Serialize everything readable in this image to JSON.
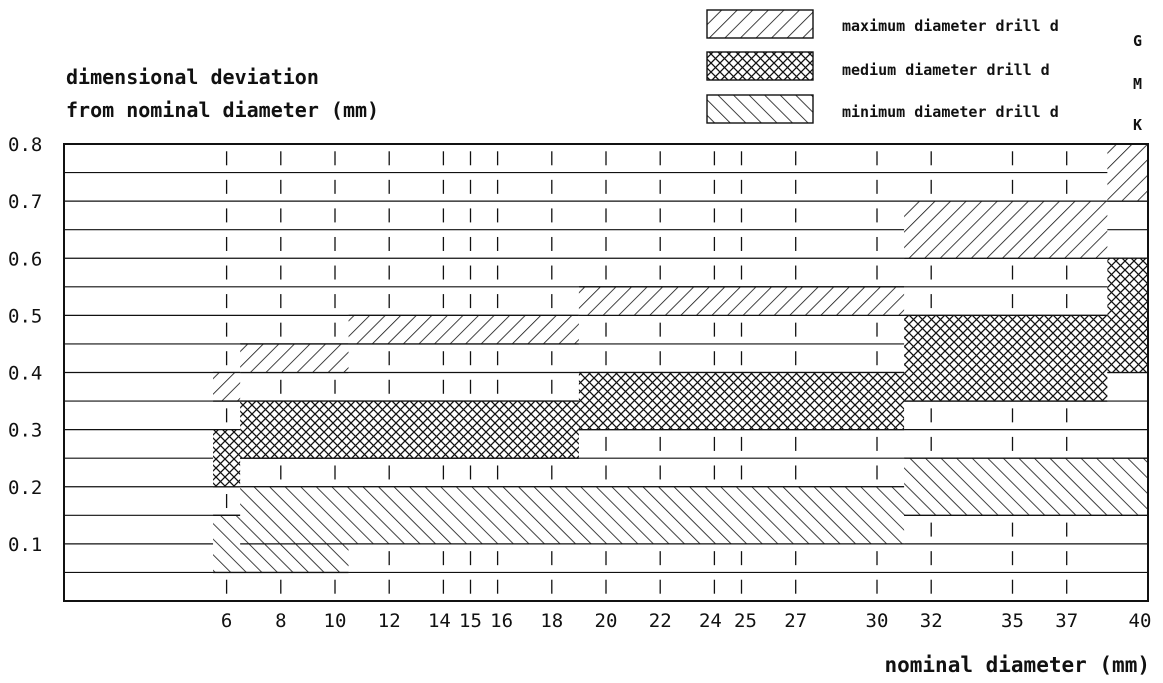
{
  "chart_data": {
    "type": "range-bar",
    "ylabel_lines": [
      "dimensional deviation",
      "from nominal diameter (mm)"
    ],
    "xlabel": "nominal diameter (mm)",
    "ylim": [
      0,
      0.8
    ],
    "xlim": [
      0,
      40
    ],
    "y_ticks": [
      "0.1",
      "0.2",
      "0.3",
      "0.4",
      "0.5",
      "0.6",
      "0.7",
      "0.8"
    ],
    "x_ticks": [
      "6",
      "8",
      "10",
      "12",
      "14",
      "15",
      "16",
      "18",
      "20",
      "22",
      "24",
      "25",
      "27",
      "30",
      "32",
      "35",
      "37",
      "40"
    ],
    "x_tick_values": [
      6,
      8,
      10,
      12,
      14,
      15,
      16,
      18,
      20,
      22,
      24,
      25,
      27,
      30,
      32,
      35,
      37,
      40
    ],
    "grid": true,
    "legend_position": "top-right",
    "series": [
      {
        "name": "maximum diameter drill d",
        "subscript": "G",
        "pattern": "diagonal-forward",
        "ranges": [
          {
            "x_from": 5.5,
            "x_to": 6.5,
            "y_from": 0.35,
            "y_to": 0.4
          },
          {
            "x_from": 6.5,
            "x_to": 10.5,
            "y_from": 0.4,
            "y_to": 0.45
          },
          {
            "x_from": 10.5,
            "x_to": 19,
            "y_from": 0.45,
            "y_to": 0.5
          },
          {
            "x_from": 19,
            "x_to": 31,
            "y_from": 0.5,
            "y_to": 0.55
          },
          {
            "x_from": 31,
            "x_to": 38.5,
            "y_from": 0.6,
            "y_to": 0.7
          },
          {
            "x_from": 38.5,
            "x_to": 40,
            "y_from": 0.7,
            "y_to": 0.8
          }
        ]
      },
      {
        "name": "medium diameter drill d",
        "subscript": "M",
        "pattern": "cross-hatch",
        "ranges": [
          {
            "x_from": 5.5,
            "x_to": 6.5,
            "y_from": 0.2,
            "y_to": 0.3
          },
          {
            "x_from": 6.5,
            "x_to": 19,
            "y_from": 0.25,
            "y_to": 0.35
          },
          {
            "x_from": 19,
            "x_to": 31,
            "y_from": 0.3,
            "y_to": 0.4
          },
          {
            "x_from": 31,
            "x_to": 38.5,
            "y_from": 0.35,
            "y_to": 0.5
          },
          {
            "x_from": 38.5,
            "x_to": 40,
            "y_from": 0.4,
            "y_to": 0.6
          }
        ]
      },
      {
        "name": "minimum diameter drill d",
        "subscript": "K",
        "pattern": "diagonal-backward",
        "ranges": [
          {
            "x_from": 5.5,
            "x_to": 10.5,
            "y_from": 0.05,
            "y_to": 0.15
          },
          {
            "x_from": 6.5,
            "x_to": 31,
            "y_from": 0.1,
            "y_to": 0.2
          },
          {
            "x_from": 31,
            "x_to": 40,
            "y_from": 0.15,
            "y_to": 0.25
          }
        ]
      }
    ]
  },
  "colors": {
    "ink": "#111111",
    "background": "#ffffff"
  }
}
